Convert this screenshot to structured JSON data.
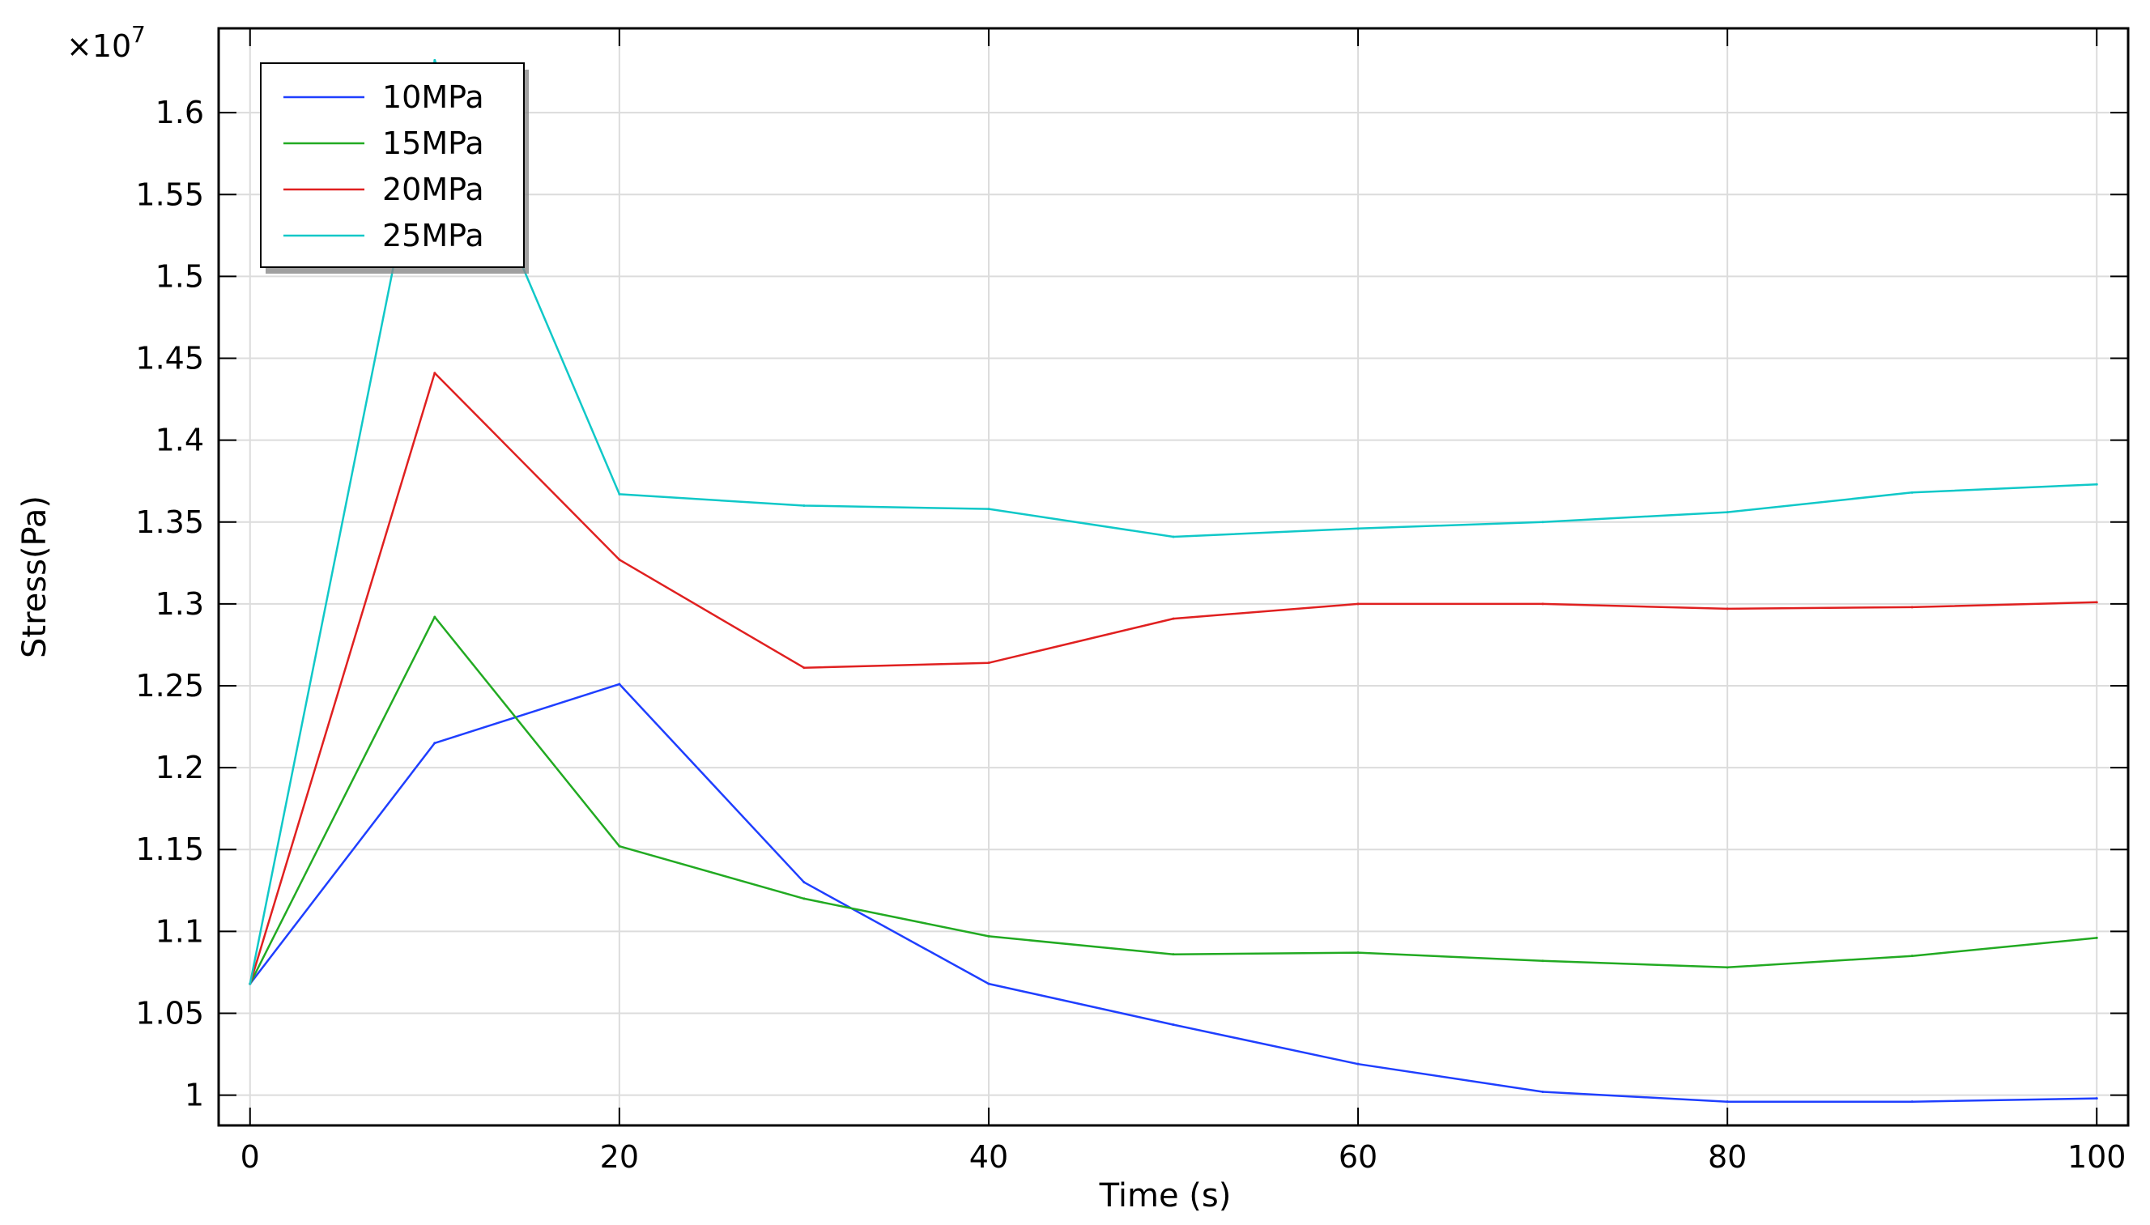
{
  "chart_data": {
    "type": "line",
    "title": "",
    "xlabel": "Time (s)",
    "ylabel": "Stress(Pa)",
    "y_multiplier_label": "×10",
    "y_multiplier_exponent": "7",
    "xlim": [
      -1.7,
      101.7
    ],
    "ylim": [
      0.9815,
      1.6515
    ],
    "x_ticks": [
      0,
      20,
      40,
      60,
      80,
      100
    ],
    "x_tick_labels": [
      "0",
      "20",
      "40",
      "60",
      "80",
      "100"
    ],
    "y_ticks": [
      1.0,
      1.05,
      1.1,
      1.15,
      1.2,
      1.25,
      1.3,
      1.35,
      1.4,
      1.45,
      1.5,
      1.55,
      1.6
    ],
    "y_tick_labels": [
      "1",
      "1.05",
      "1.1",
      "1.15",
      "1.2",
      "1.25",
      "1.3",
      "1.35",
      "1.4",
      "1.45",
      "1.5",
      "1.55",
      "1.6"
    ],
    "grid": true,
    "legend_position": "top-left",
    "x": [
      0,
      10,
      20,
      30,
      40,
      50,
      60,
      70,
      80,
      90,
      100
    ],
    "series": [
      {
        "name": "10MPa",
        "color": "#1f3fff",
        "values": [
          1.068,
          1.215,
          1.251,
          1.13,
          1.068,
          1.043,
          1.019,
          1.002,
          0.996,
          0.996,
          0.998
        ]
      },
      {
        "name": "15MPa",
        "color": "#22aa22",
        "values": [
          1.068,
          1.292,
          1.152,
          1.12,
          1.097,
          1.086,
          1.087,
          1.082,
          1.078,
          1.085,
          1.096
        ]
      },
      {
        "name": "20MPa",
        "color": "#e02020",
        "values": [
          1.068,
          1.441,
          1.327,
          1.261,
          1.264,
          1.291,
          1.3,
          1.3,
          1.297,
          1.298,
          1.301
        ]
      },
      {
        "name": "25MPa",
        "color": "#10c8c8",
        "values": [
          1.068,
          1.632,
          1.367,
          1.36,
          1.358,
          1.341,
          1.346,
          1.35,
          1.356,
          1.368,
          1.373
        ]
      }
    ]
  }
}
